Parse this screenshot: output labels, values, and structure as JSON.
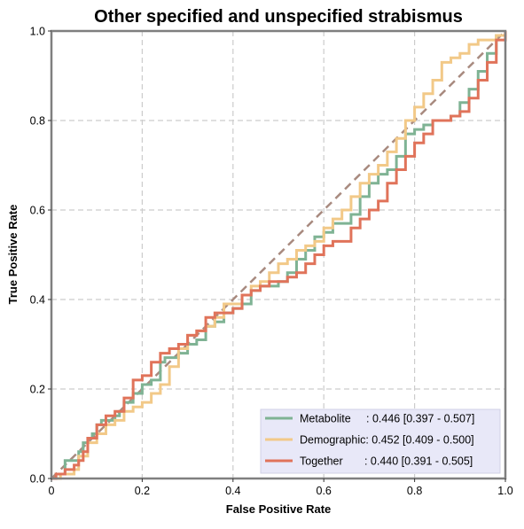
{
  "chart_data": {
    "type": "line",
    "title": "Other specified and unspecified strabismus",
    "xlabel": "False Positive Rate",
    "ylabel": "True Positive Rate",
    "xlim": [
      0,
      1
    ],
    "ylim": [
      0,
      1
    ],
    "xticks": [
      "0",
      "0.2",
      "0.4",
      "0.6",
      "0.8",
      "1.0"
    ],
    "yticks": [
      "0.0",
      "0.2",
      "0.4",
      "0.6",
      "0.8",
      "1.0"
    ],
    "grid": true,
    "legend_position": "bottom-right",
    "diagonal": {
      "x": [
        0,
        1
      ],
      "y": [
        0,
        1
      ],
      "color": "#a88a7f",
      "style": "dashed"
    },
    "series": [
      {
        "name": "Metabolite",
        "legend_label": "Metabolite     : 0.446 [0.397 - 0.507]",
        "color": "#7fb394",
        "x": [
          0,
          0.01,
          0.03,
          0.03,
          0.05,
          0.06,
          0.07,
          0.08,
          0.09,
          0.1,
          0.11,
          0.12,
          0.14,
          0.15,
          0.16,
          0.18,
          0.2,
          0.22,
          0.24,
          0.25,
          0.26,
          0.28,
          0.3,
          0.32,
          0.34,
          0.36,
          0.38,
          0.4,
          0.42,
          0.44,
          0.46,
          0.48,
          0.5,
          0.52,
          0.54,
          0.56,
          0.58,
          0.6,
          0.62,
          0.64,
          0.66,
          0.68,
          0.7,
          0.72,
          0.74,
          0.76,
          0.78,
          0.8,
          0.82,
          0.84,
          0.86,
          0.88,
          0.9,
          0.92,
          0.94,
          0.96,
          0.98,
          1.0
        ],
        "y": [
          0,
          0.01,
          0.02,
          0.04,
          0.04,
          0.06,
          0.08,
          0.09,
          0.1,
          0.12,
          0.13,
          0.13,
          0.14,
          0.15,
          0.17,
          0.19,
          0.21,
          0.22,
          0.26,
          0.27,
          0.27,
          0.28,
          0.3,
          0.31,
          0.34,
          0.35,
          0.37,
          0.38,
          0.39,
          0.42,
          0.43,
          0.43,
          0.44,
          0.46,
          0.49,
          0.51,
          0.54,
          0.55,
          0.57,
          0.57,
          0.59,
          0.63,
          0.66,
          0.68,
          0.69,
          0.72,
          0.77,
          0.78,
          0.79,
          0.8,
          0.8,
          0.81,
          0.84,
          0.87,
          0.91,
          0.95,
          0.99,
          1.0
        ]
      },
      {
        "name": "Demographic",
        "legend_label": "Demographic: 0.452 [0.409 - 0.500]",
        "color": "#f2c988",
        "x": [
          0,
          0.02,
          0.05,
          0.06,
          0.08,
          0.1,
          0.12,
          0.14,
          0.16,
          0.18,
          0.2,
          0.22,
          0.24,
          0.26,
          0.28,
          0.3,
          0.32,
          0.34,
          0.36,
          0.38,
          0.4,
          0.42,
          0.44,
          0.46,
          0.48,
          0.5,
          0.52,
          0.54,
          0.56,
          0.58,
          0.6,
          0.62,
          0.64,
          0.66,
          0.68,
          0.7,
          0.72,
          0.74,
          0.76,
          0.78,
          0.8,
          0.82,
          0.84,
          0.86,
          0.88,
          0.9,
          0.92,
          0.94,
          0.96,
          0.98,
          1.0
        ],
        "y": [
          0,
          0.01,
          0.02,
          0.05,
          0.08,
          0.1,
          0.12,
          0.13,
          0.15,
          0.16,
          0.17,
          0.19,
          0.21,
          0.25,
          0.29,
          0.32,
          0.33,
          0.34,
          0.36,
          0.39,
          0.39,
          0.41,
          0.43,
          0.44,
          0.46,
          0.48,
          0.49,
          0.51,
          0.52,
          0.53,
          0.56,
          0.58,
          0.6,
          0.63,
          0.66,
          0.68,
          0.7,
          0.73,
          0.76,
          0.8,
          0.83,
          0.86,
          0.89,
          0.93,
          0.94,
          0.95,
          0.97,
          0.98,
          0.98,
          0.99,
          1.0
        ]
      },
      {
        "name": "Together",
        "legend_label": "Together       : 0.440 [0.391 - 0.505]",
        "color": "#e0735a",
        "x": [
          0,
          0.01,
          0.03,
          0.05,
          0.06,
          0.07,
          0.08,
          0.1,
          0.12,
          0.14,
          0.16,
          0.18,
          0.2,
          0.22,
          0.24,
          0.26,
          0.28,
          0.3,
          0.32,
          0.34,
          0.36,
          0.38,
          0.4,
          0.42,
          0.44,
          0.46,
          0.48,
          0.5,
          0.52,
          0.54,
          0.56,
          0.58,
          0.6,
          0.62,
          0.64,
          0.66,
          0.68,
          0.7,
          0.72,
          0.74,
          0.76,
          0.78,
          0.8,
          0.82,
          0.84,
          0.86,
          0.88,
          0.9,
          0.92,
          0.94,
          0.96,
          0.98,
          1.0
        ],
        "y": [
          0,
          0.01,
          0.02,
          0.03,
          0.04,
          0.06,
          0.09,
          0.12,
          0.14,
          0.15,
          0.18,
          0.22,
          0.23,
          0.26,
          0.28,
          0.29,
          0.3,
          0.32,
          0.33,
          0.36,
          0.37,
          0.37,
          0.38,
          0.41,
          0.42,
          0.43,
          0.44,
          0.44,
          0.45,
          0.46,
          0.48,
          0.5,
          0.52,
          0.53,
          0.53,
          0.56,
          0.58,
          0.6,
          0.62,
          0.66,
          0.69,
          0.72,
          0.75,
          0.77,
          0.8,
          0.8,
          0.81,
          0.82,
          0.85,
          0.89,
          0.93,
          0.98,
          1.0
        ]
      }
    ]
  }
}
